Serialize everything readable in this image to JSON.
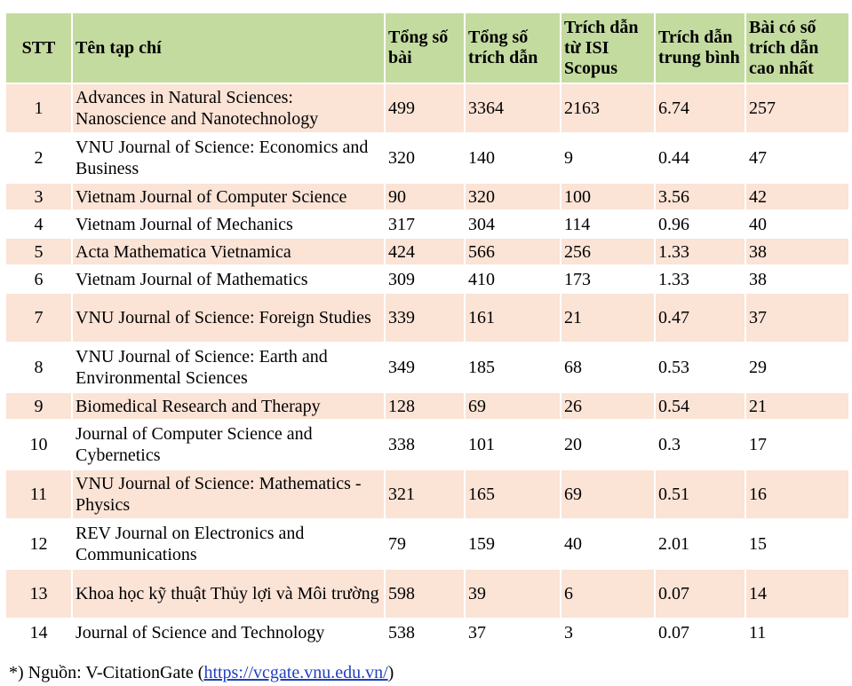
{
  "table": {
    "headers": {
      "stt": "STT",
      "journal": "Tên tạp chí",
      "total_papers": "Tổng số bài",
      "total_citations": "Tổng số trích dẫn",
      "isi_scopus_citations": "Trích dẫn từ ISI Scopus",
      "avg_citations": "Trích dẫn trung bình",
      "top_cited": "Bài có số trích dẫn cao nhất"
    },
    "rows": [
      {
        "stt": "1",
        "journal": "Advances in Natural Sciences: Nanoscience and Nanotechnology",
        "total_papers": "499",
        "total_citations": "3364",
        "isi_scopus": "2163",
        "avg": "6.74",
        "top": "257"
      },
      {
        "stt": "2",
        "journal": "VNU Journal of Science: Economics and Business",
        "total_papers": "320",
        "total_citations": "140",
        "isi_scopus": "9",
        "avg": "0.44",
        "top": "47"
      },
      {
        "stt": "3",
        "journal": "Vietnam Journal of Computer Science",
        "total_papers": "90",
        "total_citations": "320",
        "isi_scopus": "100",
        "avg": "3.56",
        "top": "42"
      },
      {
        "stt": "4",
        "journal": "Vietnam Journal of Mechanics",
        "total_papers": "317",
        "total_citations": "304",
        "isi_scopus": "114",
        "avg": "0.96",
        "top": "40"
      },
      {
        "stt": "5",
        "journal": "Acta Mathematica Vietnamica",
        "total_papers": "424",
        "total_citations": "566",
        "isi_scopus": "256",
        "avg": "1.33",
        "top": "38"
      },
      {
        "stt": "6",
        "journal": "Vietnam Journal of Mathematics",
        "total_papers": "309",
        "total_citations": "410",
        "isi_scopus": "173",
        "avg": "1.33",
        "top": "38"
      },
      {
        "stt": "7",
        "journal": "VNU Journal of Science: Foreign Studies",
        "total_papers": "339",
        "total_citations": "161",
        "isi_scopus": "21",
        "avg": "0.47",
        "top": "37"
      },
      {
        "stt": "8",
        "journal": "VNU Journal of Science: Earth and Environmental Sciences",
        "total_papers": "349",
        "total_citations": "185",
        "isi_scopus": "68",
        "avg": "0.53",
        "top": "29"
      },
      {
        "stt": "9",
        "journal": "Biomedical Research and Therapy",
        "total_papers": "128",
        "total_citations": "69",
        "isi_scopus": "26",
        "avg": "0.54",
        "top": "21"
      },
      {
        "stt": "10",
        "journal": "Journal of Computer Science and Cybernetics",
        "total_papers": "338",
        "total_citations": "101",
        "isi_scopus": "20",
        "avg": "0.3",
        "top": "17"
      },
      {
        "stt": "11",
        "journal": "VNU Journal of Science: Mathematics - Physics",
        "total_papers": "321",
        "total_citations": "165",
        "isi_scopus": "69",
        "avg": "0.51",
        "top": "16"
      },
      {
        "stt": "12",
        "journal": "REV Journal on Electronics and Communications",
        "total_papers": "79",
        "total_citations": "159",
        "isi_scopus": "40",
        "avg": "2.01",
        "top": "15"
      },
      {
        "stt": "13",
        "journal": "Khoa học kỹ thuật Thủy lợi và Môi trường",
        "total_papers": "598",
        "total_citations": "39",
        "isi_scopus": "6",
        "avg": "0.07",
        "top": "14"
      },
      {
        "stt": "14",
        "journal": "Journal of Science and Technology",
        "total_papers": "538",
        "total_citations": "37",
        "isi_scopus": "3",
        "avg": "0.07",
        "top": "11"
      }
    ]
  },
  "source_note": {
    "prefix": "*) Nguồn: V-CitationGate (",
    "link_text": "https://vcgate.vnu.edu.vn/",
    "suffix": ")"
  },
  "colors": {
    "header_bg": "#c4dba0",
    "shaded_row_bg": "#fbe3d6",
    "link": "#1f3fbf"
  }
}
